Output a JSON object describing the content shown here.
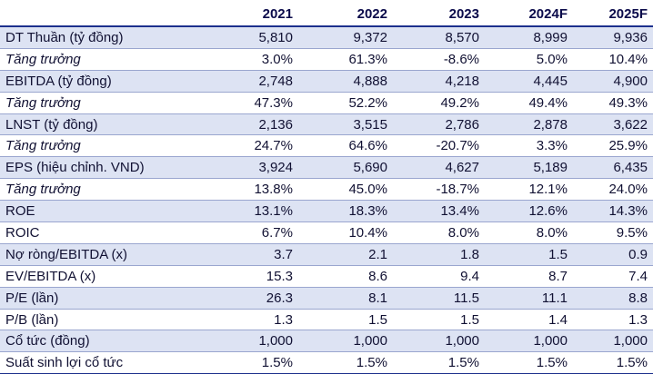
{
  "header": {
    "label": "",
    "years": [
      "2021",
      "2022",
      "2023",
      "2024F",
      "2025F"
    ]
  },
  "rows": [
    {
      "label": "DT Thuần (tỷ đồng)",
      "values": [
        "5,810",
        "9,372",
        "8,570",
        "8,999",
        "9,936"
      ],
      "italic": false,
      "shaded": true
    },
    {
      "label": "Tăng trưởng",
      "values": [
        "3.0%",
        "61.3%",
        "-8.6%",
        "5.0%",
        "10.4%"
      ],
      "italic": true,
      "shaded": false
    },
    {
      "label": "EBITDA (tỷ đồng)",
      "values": [
        "2,748",
        "4,888",
        "4,218",
        "4,445",
        "4,900"
      ],
      "italic": false,
      "shaded": true
    },
    {
      "label": "Tăng trưởng",
      "values": [
        "47.3%",
        "52.2%",
        "49.2%",
        "49.4%",
        "49.3%"
      ],
      "italic": true,
      "shaded": false
    },
    {
      "label": "LNST (tỷ đồng)",
      "values": [
        "2,136",
        "3,515",
        "2,786",
        "2,878",
        "3,622"
      ],
      "italic": false,
      "shaded": true
    },
    {
      "label": "Tăng trưởng",
      "values": [
        "24.7%",
        "64.6%",
        "-20.7%",
        "3.3%",
        "25.9%"
      ],
      "italic": true,
      "shaded": false
    },
    {
      "label": "EPS (hiệu chỉnh. VND)",
      "values": [
        "3,924",
        "5,690",
        "4,627",
        "5,189",
        "6,435"
      ],
      "italic": false,
      "shaded": true
    },
    {
      "label": "Tăng trưởng",
      "values": [
        "13.8%",
        "45.0%",
        "-18.7%",
        "12.1%",
        "24.0%"
      ],
      "italic": true,
      "shaded": false
    },
    {
      "label": "ROE",
      "values": [
        "13.1%",
        "18.3%",
        "13.4%",
        "12.6%",
        "14.3%"
      ],
      "italic": false,
      "shaded": true
    },
    {
      "label": "ROIC",
      "values": [
        "6.7%",
        "10.4%",
        "8.0%",
        "8.0%",
        "9.5%"
      ],
      "italic": false,
      "shaded": false
    },
    {
      "label": "Nợ ròng/EBITDA (x)",
      "values": [
        "3.7",
        "2.1",
        "1.8",
        "1.5",
        "0.9"
      ],
      "italic": false,
      "shaded": true
    },
    {
      "label": "EV/EBITDA (x)",
      "values": [
        "15.3",
        "8.6",
        "9.4",
        "8.7",
        "7.4"
      ],
      "italic": false,
      "shaded": false
    },
    {
      "label": "P/E (lần)",
      "values": [
        "26.3",
        "8.1",
        "11.5",
        "11.1",
        "8.8"
      ],
      "italic": false,
      "shaded": true
    },
    {
      "label": "P/B (lần)",
      "values": [
        "1.3",
        "1.5",
        "1.5",
        "1.4",
        "1.3"
      ],
      "italic": false,
      "shaded": false
    },
    {
      "label": "Cổ tức (đồng)",
      "values": [
        "1,000",
        "1,000",
        "1,000",
        "1,000",
        "1,000"
      ],
      "italic": false,
      "shaded": true
    },
    {
      "label": "Suất sinh lợi cổ tức",
      "values": [
        "1.5%",
        "1.5%",
        "1.5%",
        "1.5%",
        "1.5%"
      ],
      "italic": false,
      "shaded": false
    }
  ]
}
